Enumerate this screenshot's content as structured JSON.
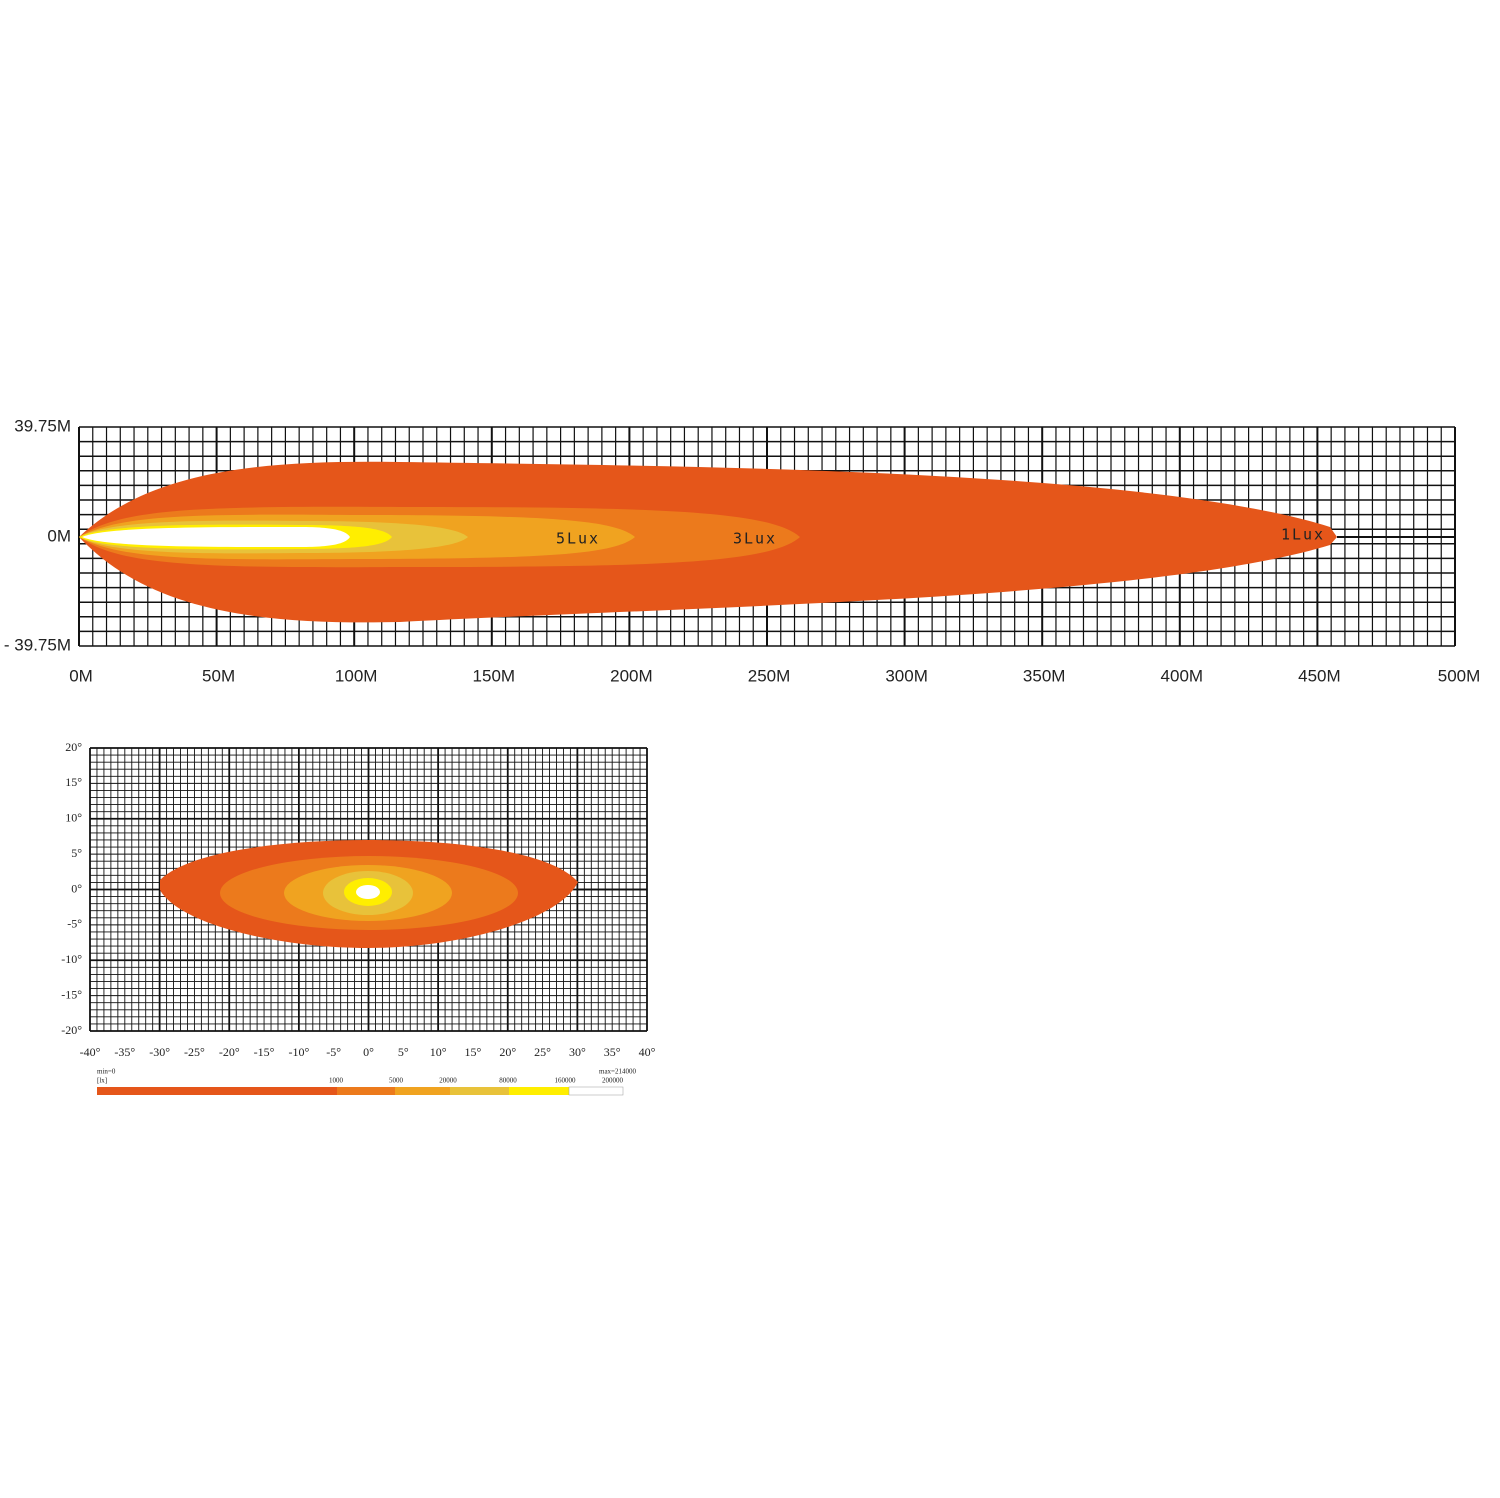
{
  "top_plot": {
    "y_labels": [
      "39.75M",
      "0M",
      "- 39.75M"
    ],
    "x_labels": [
      "0M",
      "50M",
      "100M",
      "150M",
      "200M",
      "250M",
      "300M",
      "350M",
      "400M",
      "450M",
      "500M"
    ],
    "contour_labels": [
      "5Lux",
      "3Lux",
      "1Lux"
    ]
  },
  "bottom_plot": {
    "y_labels": [
      "20°",
      "15°",
      "10°",
      "5°",
      "0°",
      "-5°",
      "-10°",
      "-15°",
      "-20°"
    ],
    "x_labels": [
      "-40°",
      "-35°",
      "-30°",
      "-25°",
      "-20°",
      "-15°",
      "-10°",
      "-5°",
      "0°",
      "5°",
      "10°",
      "15°",
      "20°",
      "25°",
      "30°",
      "35°",
      "40°"
    ],
    "legend": {
      "min": "min=0",
      "unit": "[lx]",
      "max": "max=214000",
      "levels": [
        "1000",
        "5000",
        "20000",
        "80000",
        "160000",
        "200000"
      ]
    }
  }
}
